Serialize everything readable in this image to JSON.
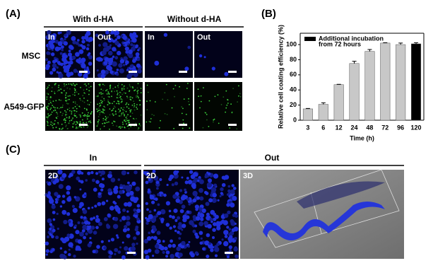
{
  "panels": {
    "a": {
      "label": "(A)",
      "column_groups": [
        "With d-HA",
        "Without d-HA"
      ],
      "image_labels": [
        "In",
        "Out",
        "In",
        "Out"
      ],
      "row_labels": [
        "MSC",
        "A549-GFP"
      ]
    },
    "b": {
      "label": "(B)"
    },
    "c": {
      "label": "(C)",
      "column_groups": [
        "In",
        "Out"
      ],
      "image_labels": [
        "2D",
        "2D",
        "3D"
      ]
    }
  },
  "chart_data": {
    "type": "bar",
    "xlabel": "Time (h)",
    "ylabel": "Relative cell coating efficiency (%)",
    "categories": [
      "3",
      "6",
      "12",
      "24",
      "48",
      "72",
      "96",
      "120"
    ],
    "values": [
      15,
      21,
      47,
      75,
      91,
      102,
      100,
      101
    ],
    "errors": [
      0.5,
      2,
      0.5,
      3,
      2.5,
      0.5,
      2,
      1.5
    ],
    "colors": [
      "#c8c8c8",
      "#c8c8c8",
      "#c8c8c8",
      "#c8c8c8",
      "#c8c8c8",
      "#c8c8c8",
      "#c8c8c8",
      "#000000"
    ],
    "legend": {
      "lines": [
        "Additional incubation",
        "from 72 hours"
      ],
      "color": "#000000"
    },
    "ylim": [
      0,
      115
    ],
    "yticks": [
      0,
      20,
      40,
      60,
      80,
      100
    ]
  }
}
